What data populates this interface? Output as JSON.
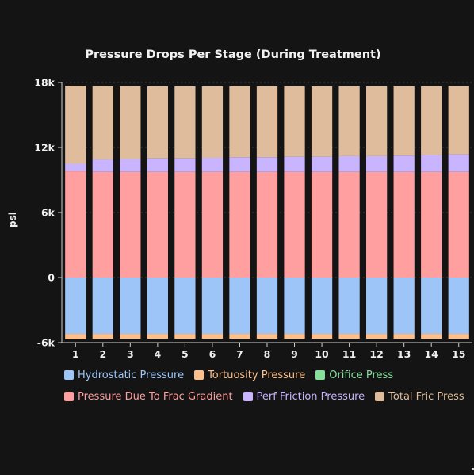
{
  "chart_data": {
    "type": "bar",
    "stacked": true,
    "title": "Pressure Drops Per Stage (During Treatment)",
    "xlabel": "",
    "ylabel": "psi",
    "ylim": [
      -6000,
      18000
    ],
    "yticks": [
      -6000,
      0,
      6000,
      12000,
      18000
    ],
    "ytick_labels": [
      "-6k",
      "0",
      "6k",
      "12k",
      "18k"
    ],
    "categories": [
      "1",
      "2",
      "3",
      "4",
      "5",
      "6",
      "7",
      "8",
      "9",
      "10",
      "11",
      "12",
      "13",
      "14",
      "15"
    ],
    "legend_position": "bottom",
    "series": [
      {
        "name": "Hydrostatic Pressure",
        "color": "#9ec5f7",
        "values": [
          -5200,
          -5200,
          -5200,
          -5200,
          -5200,
          -5200,
          -5200,
          -5200,
          -5200,
          -5200,
          -5200,
          -5200,
          -5200,
          -5200,
          -5200
        ]
      },
      {
        "name": "Tortuosity Pressure",
        "color": "#ffbf8a",
        "values": [
          -500,
          -450,
          -450,
          -450,
          -450,
          -450,
          -450,
          -450,
          -450,
          -450,
          -450,
          -450,
          -450,
          -450,
          -450
        ]
      },
      {
        "name": "Orifice Press",
        "color": "#86df9a",
        "values": [
          0,
          0,
          0,
          0,
          0,
          0,
          0,
          0,
          0,
          0,
          0,
          0,
          0,
          0,
          0
        ]
      },
      {
        "name": "Pressure Due To Frac Gradient",
        "color": "#ff9f9f",
        "values": [
          9800,
          9750,
          9750,
          9750,
          9750,
          9750,
          9750,
          9750,
          9750,
          9750,
          9750,
          9750,
          9750,
          9750,
          9750
        ]
      },
      {
        "name": "Perf Friction Pressure",
        "color": "#c8b4ff",
        "values": [
          700,
          1150,
          1200,
          1250,
          1250,
          1300,
          1350,
          1350,
          1400,
          1400,
          1450,
          1450,
          1500,
          1550,
          1600
        ]
      },
      {
        "name": "Total Fric Press",
        "color": "#dfbd9c",
        "values": [
          7200,
          6750,
          6700,
          6650,
          6650,
          6600,
          6550,
          6550,
          6500,
          6500,
          6450,
          6450,
          6400,
          6350,
          6300
        ]
      }
    ],
    "grid": true
  }
}
